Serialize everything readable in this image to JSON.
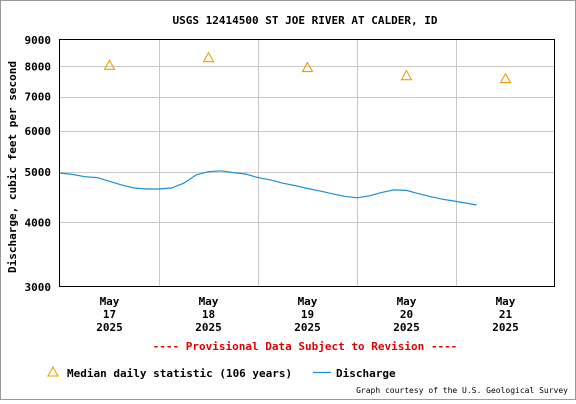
{
  "chart_data": {
    "type": "line",
    "title": "USGS 12414500 ST JOE RIVER AT CALDER, ID",
    "ylabel": "Discharge, cubic feet per second",
    "xlabel": "",
    "y_scale": "log",
    "ylim": [
      3000,
      9000
    ],
    "y_ticks": [
      3000,
      4000,
      5000,
      6000,
      7000,
      8000,
      9000
    ],
    "y_tick_labels": [
      "3000",
      "4000",
      "5000",
      "6000",
      "7000",
      "8000",
      "9000"
    ],
    "xlim": [
      "2025-05-16T12:00",
      "2025-05-21T12:00"
    ],
    "x_ticks": [
      {
        "date": "2025-05-17T00:00",
        "label": [
          "May",
          "17",
          "2025"
        ]
      },
      {
        "date": "2025-05-18T00:00",
        "label": [
          "May",
          "18",
          "2025"
        ]
      },
      {
        "date": "2025-05-19T00:00",
        "label": [
          "May",
          "19",
          "2025"
        ]
      },
      {
        "date": "2025-05-20T00:00",
        "label": [
          "May",
          "20",
          "2025"
        ]
      },
      {
        "date": "2025-05-21T00:00",
        "label": [
          "May",
          "21",
          "2025"
        ]
      }
    ],
    "grid": true,
    "provisional_note": "---- Provisional Data Subject to Revision ----",
    "series": [
      {
        "name": "Discharge",
        "type": "line",
        "color": "#1f8fd0",
        "points": [
          {
            "x": "2025-05-16T12:00",
            "y": 4980
          },
          {
            "x": "2025-05-16T15:00",
            "y": 4950
          },
          {
            "x": "2025-05-16T18:00",
            "y": 4900
          },
          {
            "x": "2025-05-16T21:00",
            "y": 4880
          },
          {
            "x": "2025-05-17T00:00",
            "y": 4800
          },
          {
            "x": "2025-05-17T03:00",
            "y": 4720
          },
          {
            "x": "2025-05-17T06:00",
            "y": 4660
          },
          {
            "x": "2025-05-17T09:00",
            "y": 4640
          },
          {
            "x": "2025-05-17T12:00",
            "y": 4640
          },
          {
            "x": "2025-05-17T15:00",
            "y": 4660
          },
          {
            "x": "2025-05-17T18:00",
            "y": 4760
          },
          {
            "x": "2025-05-17T21:00",
            "y": 4940
          },
          {
            "x": "2025-05-18T00:00",
            "y": 5010
          },
          {
            "x": "2025-05-18T03:00",
            "y": 5030
          },
          {
            "x": "2025-05-18T06:00",
            "y": 4990
          },
          {
            "x": "2025-05-18T09:00",
            "y": 4960
          },
          {
            "x": "2025-05-18T12:00",
            "y": 4880
          },
          {
            "x": "2025-05-18T15:00",
            "y": 4830
          },
          {
            "x": "2025-05-18T18:00",
            "y": 4760
          },
          {
            "x": "2025-05-18T21:00",
            "y": 4710
          },
          {
            "x": "2025-05-19T00:00",
            "y": 4650
          },
          {
            "x": "2025-05-19T03:00",
            "y": 4600
          },
          {
            "x": "2025-05-19T06:00",
            "y": 4540
          },
          {
            "x": "2025-05-19T09:00",
            "y": 4490
          },
          {
            "x": "2025-05-19T12:00",
            "y": 4460
          },
          {
            "x": "2025-05-19T15:00",
            "y": 4500
          },
          {
            "x": "2025-05-19T18:00",
            "y": 4570
          },
          {
            "x": "2025-05-19T21:00",
            "y": 4620
          },
          {
            "x": "2025-05-20T00:00",
            "y": 4610
          },
          {
            "x": "2025-05-20T03:00",
            "y": 4540
          },
          {
            "x": "2025-05-20T06:00",
            "y": 4480
          },
          {
            "x": "2025-05-20T09:00",
            "y": 4430
          },
          {
            "x": "2025-05-20T12:00",
            "y": 4390
          },
          {
            "x": "2025-05-20T15:00",
            "y": 4350
          },
          {
            "x": "2025-05-20T17:00",
            "y": 4320
          }
        ]
      },
      {
        "name": "Median daily statistic (106 years)",
        "type": "scatter",
        "marker": "triangle",
        "color": "#e8a000",
        "points": [
          {
            "x": "2025-05-17T00:00",
            "y": 8040
          },
          {
            "x": "2025-05-18T00:00",
            "y": 8320
          },
          {
            "x": "2025-05-19T00:00",
            "y": 7960
          },
          {
            "x": "2025-05-20T00:00",
            "y": 7680
          },
          {
            "x": "2025-05-21T00:00",
            "y": 7580
          }
        ]
      }
    ],
    "legend": {
      "placement": "bottom",
      "entries": [
        {
          "label": "Median daily statistic (106 years)",
          "marker": "triangle",
          "color": "#e8a000"
        },
        {
          "label": "Discharge",
          "marker": "line",
          "color": "#1f8fd0"
        }
      ]
    },
    "credit": "Graph courtesy of the U.S. Geological Survey"
  }
}
